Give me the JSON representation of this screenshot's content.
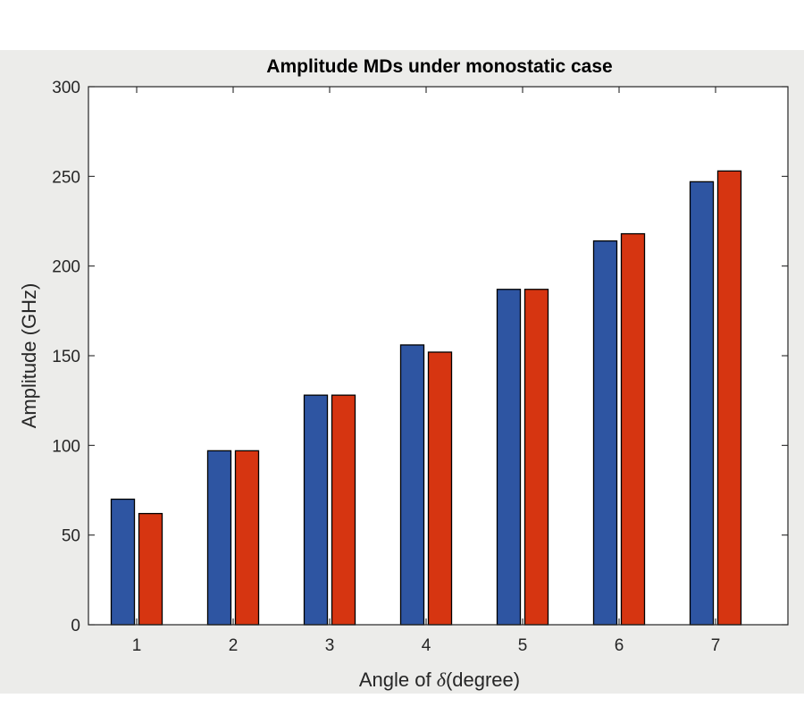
{
  "colors": {
    "figure_background": "#ececea",
    "plot_background": "#ffffff",
    "axis": "#262626",
    "series_1": "#2e55a2",
    "series_2": "#d63511"
  },
  "chart_data": {
    "type": "bar",
    "title": "Amplitude MDs under monostatic case",
    "xlabel_prefix": "Angle of ",
    "xlabel_symbol": "δ",
    "xlabel_suffix": "(degree)",
    "ylabel": "Amplitude (GHz)",
    "categories": [
      "1",
      "2",
      "3",
      "4",
      "5",
      "6",
      "7"
    ],
    "yticks": [
      "0",
      "50",
      "100",
      "150",
      "200",
      "250",
      "300"
    ],
    "ylim": [
      0,
      300
    ],
    "grid": false,
    "legend": "none",
    "series": [
      {
        "values": [
          70,
          97,
          128,
          156,
          187,
          214,
          247
        ]
      },
      {
        "values": [
          62,
          97,
          128,
          152,
          187,
          218,
          253
        ]
      }
    ]
  }
}
